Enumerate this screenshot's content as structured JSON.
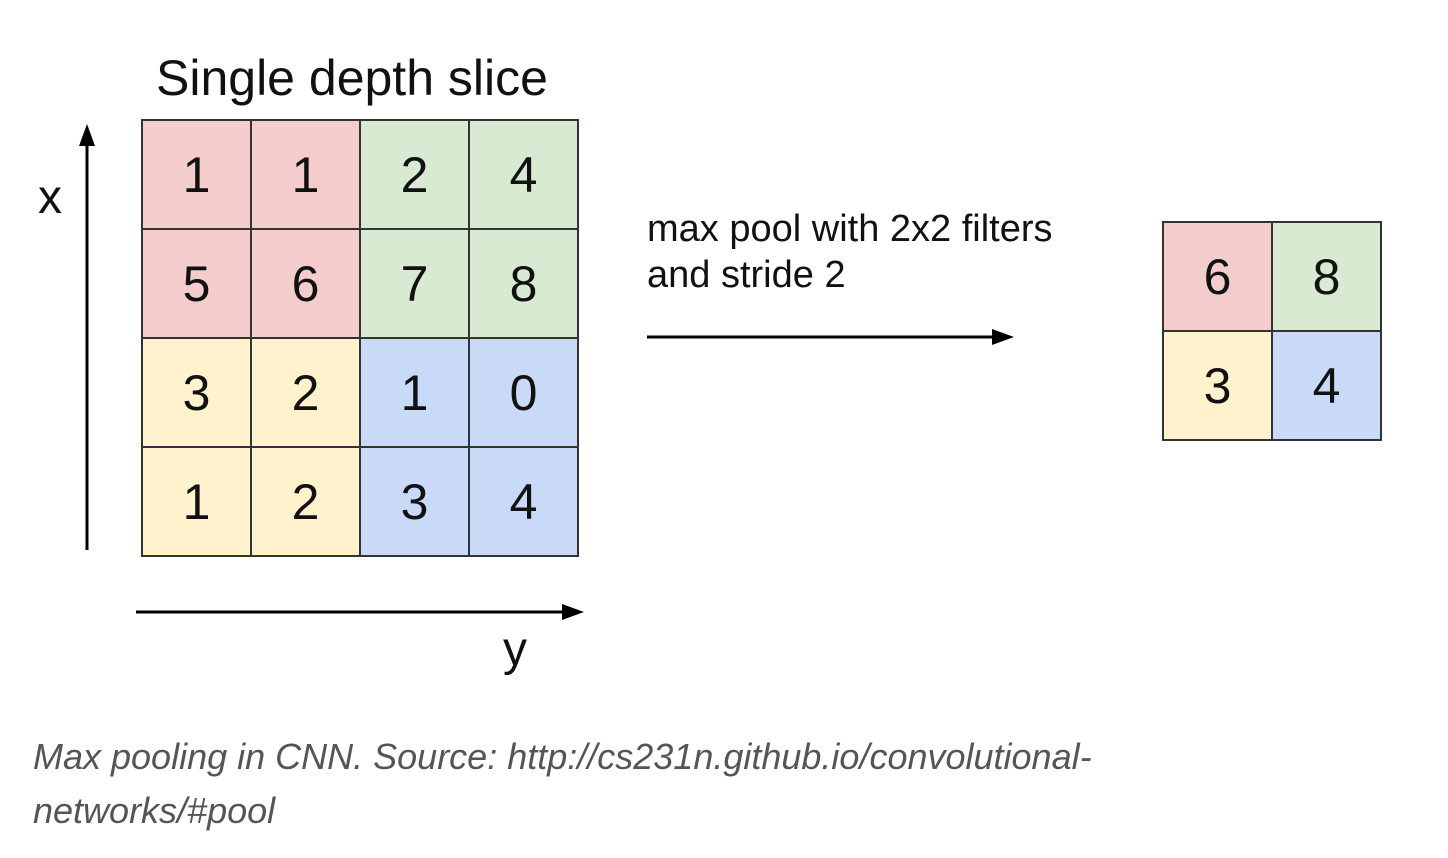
{
  "diagram": {
    "title": "Single depth slice",
    "x_axis_label": "x",
    "y_axis_label": "y",
    "operation_label_lines": [
      "max pool with 2x2 filters",
      "and stride 2"
    ],
    "input_grid": [
      [
        "1",
        "1",
        "2",
        "4"
      ],
      [
        "5",
        "6",
        "7",
        "8"
      ],
      [
        "3",
        "2",
        "1",
        "0"
      ],
      [
        "1",
        "2",
        "3",
        "4"
      ]
    ],
    "output_grid": [
      [
        "6",
        "8"
      ],
      [
        "3",
        "4"
      ]
    ],
    "quadrant_colors": {
      "top_left": "#f4cccc",
      "top_right": "#d9ead3",
      "bottom_left": "#fff2cc",
      "bottom_right": "#c9daf8"
    }
  },
  "caption_lines": [
    "Max pooling in CNN. Source: http://cs231n.github.io/convolutional-",
    "networks/#pool"
  ]
}
